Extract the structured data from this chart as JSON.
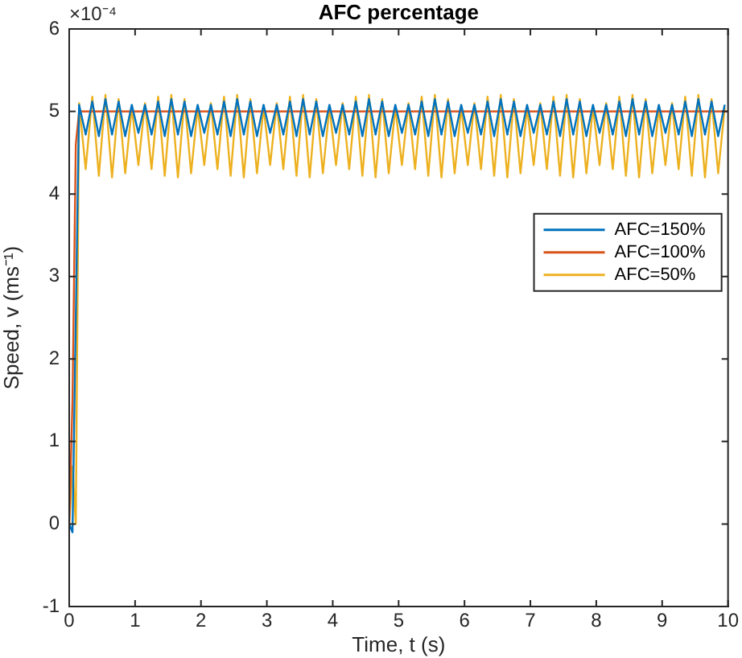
{
  "chart_data": {
    "type": "line",
    "title": "AFC percentage",
    "xlabel": "Time, t (s)",
    "ylabel": "Speed, v (ms⁻¹)",
    "annotations": [
      "×10⁻⁴"
    ],
    "x": [
      0,
      0.05,
      0.1,
      0.15,
      0.25,
      0.35,
      0.45,
      0.55,
      0.65,
      0.75,
      0.85,
      0.95,
      1.05,
      1.15,
      1.25,
      1.35,
      1.45,
      1.55,
      1.65,
      1.75,
      1.85,
      1.95,
      2.05,
      2.15,
      2.25,
      2.35,
      2.45,
      2.55,
      2.65,
      2.75,
      2.85,
      2.95,
      3.05,
      3.15,
      3.25,
      3.35,
      3.45,
      3.55,
      3.65,
      3.75,
      3.85,
      3.95,
      4.05,
      4.15,
      4.25,
      4.35,
      4.45,
      4.55,
      4.65,
      4.75,
      4.85,
      4.95,
      5.05,
      5.15,
      5.25,
      5.35,
      5.45,
      5.55,
      5.65,
      5.75,
      5.85,
      5.95,
      6.05,
      6.15,
      6.25,
      6.35,
      6.45,
      6.55,
      6.65,
      6.75,
      6.85,
      6.95,
      7.05,
      7.15,
      7.25,
      7.35,
      7.45,
      7.55,
      7.65,
      7.75,
      7.85,
      7.95,
      8.05,
      8.15,
      8.25,
      8.35,
      8.45,
      8.55,
      8.65,
      8.75,
      8.85,
      8.95,
      9.05,
      9.15,
      9.25,
      9.35,
      9.45,
      9.55,
      9.65,
      9.75,
      9.85,
      9.95
    ],
    "series": [
      {
        "name": "AFC=150%",
        "color": "#0072bd",
        "values": [
          0,
          -0.1,
          2.5,
          5.08,
          4.72,
          5.12,
          4.7,
          5.15,
          4.72,
          5.12,
          4.7,
          5.08,
          4.74,
          5.08,
          4.72,
          5.12,
          4.7,
          5.15,
          4.72,
          5.12,
          4.7,
          5.08,
          4.74,
          5.08,
          4.72,
          5.12,
          4.7,
          5.15,
          4.72,
          5.12,
          4.7,
          5.08,
          4.74,
          5.08,
          4.72,
          5.12,
          4.7,
          5.15,
          4.72,
          5.12,
          4.7,
          5.08,
          4.74,
          5.08,
          4.72,
          5.12,
          4.7,
          5.15,
          4.72,
          5.12,
          4.7,
          5.08,
          4.74,
          5.08,
          4.72,
          5.12,
          4.7,
          5.15,
          4.72,
          5.12,
          4.7,
          5.08,
          4.74,
          5.08,
          4.72,
          5.12,
          4.7,
          5.15,
          4.72,
          5.12,
          4.7,
          5.08,
          4.74,
          5.08,
          4.72,
          5.12,
          4.7,
          5.15,
          4.72,
          5.12,
          4.7,
          5.08,
          4.74,
          5.08,
          4.72,
          5.12,
          4.7,
          5.15,
          4.72,
          5.12,
          4.7,
          5.08,
          4.74,
          5.08,
          4.72,
          5.12,
          4.7,
          5.15,
          4.72,
          5.12,
          4.7,
          5.08
        ]
      },
      {
        "name": "AFC=100%",
        "color": "#d95319",
        "x": [
          0,
          0.05,
          0.1,
          0.15,
          10
        ],
        "values": [
          0,
          1.5,
          4.6,
          5,
          5
        ]
      },
      {
        "name": "AFC=50%",
        "color": "#edb120",
        "values": [
          0,
          0.7,
          0,
          5.1,
          4.3,
          5.18,
          4.22,
          5.2,
          4.2,
          5.15,
          4.25,
          5.05,
          4.35,
          5.1,
          4.3,
          5.18,
          4.22,
          5.2,
          4.2,
          5.15,
          4.25,
          5.05,
          4.35,
          5.1,
          4.3,
          5.18,
          4.22,
          5.2,
          4.2,
          5.15,
          4.25,
          5.05,
          4.35,
          5.1,
          4.3,
          5.18,
          4.22,
          5.2,
          4.2,
          5.15,
          4.25,
          5.05,
          4.35,
          5.1,
          4.3,
          5.18,
          4.22,
          5.2,
          4.2,
          5.15,
          4.25,
          5.05,
          4.35,
          5.1,
          4.3,
          5.18,
          4.22,
          5.2,
          4.2,
          5.15,
          4.25,
          5.05,
          4.35,
          5.1,
          4.3,
          5.18,
          4.22,
          5.2,
          4.2,
          5.15,
          4.25,
          5.05,
          4.35,
          5.1,
          4.3,
          5.18,
          4.22,
          5.2,
          4.2,
          5.15,
          4.25,
          5.05,
          4.35,
          5.1,
          4.3,
          5.18,
          4.22,
          5.2,
          4.2,
          5.15,
          4.25,
          5.05,
          4.35,
          5.1,
          4.3,
          5.18,
          4.22,
          5.2,
          4.2,
          5.15,
          4.25,
          5.05
        ]
      }
    ],
    "xlim": [
      0,
      10
    ],
    "xticks": [
      0,
      1,
      2,
      3,
      4,
      5,
      6,
      7,
      8,
      9,
      10
    ],
    "ylim": [
      -1,
      6
    ],
    "yticks": [
      -1,
      0,
      1,
      2,
      3,
      4,
      5,
      6
    ],
    "grid": false,
    "legend": "right",
    "marker": "none",
    "line_style": "solid"
  }
}
